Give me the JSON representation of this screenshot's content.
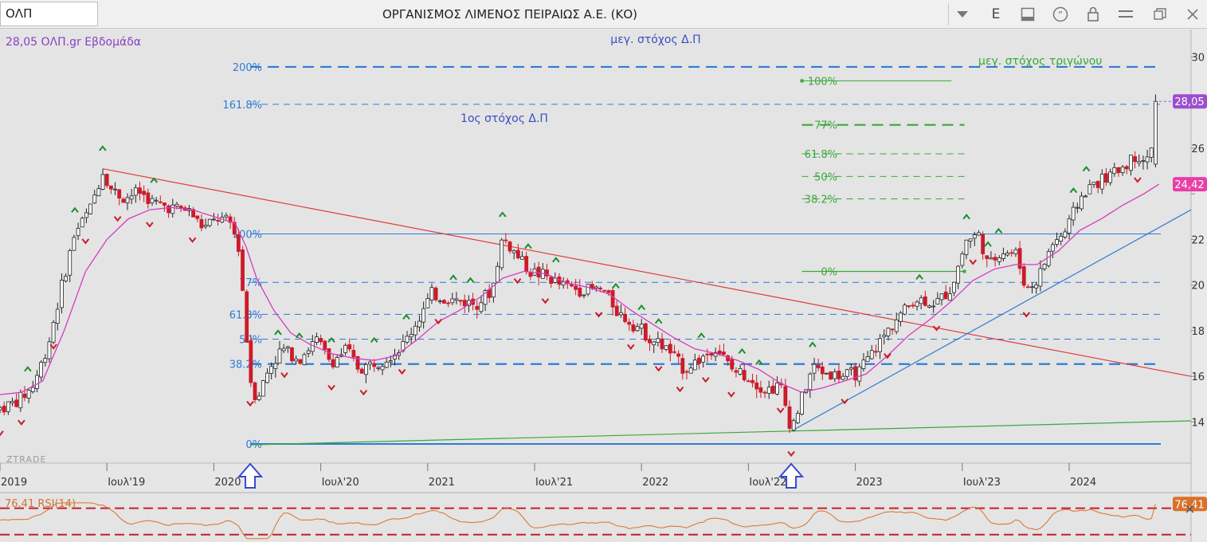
{
  "toolbar": {
    "symbol": "ΟΛΠ",
    "title": "ΟΡΓΑΝΙΣΜΟΣ ΛΙΜΕΝΟΣ ΠΕΙΡΑΙΩΣ Α.Ε. (ΚΟ)",
    "e_label": "E"
  },
  "colors": {
    "candle_up": "#ffffff",
    "candle_down": "#cc1b2a",
    "ma": "#d63bbf",
    "downtrend": "#e23b3b",
    "uptrend": "#2f7bd6",
    "base_line": "#39a83b",
    "blue_levels": "#2f7bd6",
    "green_levels": "#39a83b",
    "rsi": "#d9712a",
    "price_badge": "#9b4fd0",
    "ma_badge": "#e83ea8"
  },
  "chart_data": [
    {
      "type": "candlestick",
      "title": "28,05 ΟΛΠ.gr Εβδομάδα",
      "watermark": "ZTRADE",
      "x_ticks": [
        "2019",
        "Ιουλ'19",
        "2020",
        "Ιουλ'20",
        "2021",
        "Ιουλ'21",
        "2022",
        "Ιουλ'22",
        "2023",
        "Ιουλ'23",
        "2024"
      ],
      "y_ticks": [
        14,
        16,
        18,
        20,
        22,
        24,
        26,
        28,
        30
      ],
      "y_tick_labels": [
        "14",
        "16",
        "18",
        "20",
        "22",
        "",
        "26",
        "",
        "30"
      ],
      "ylim": [
        12.2,
        31.2
      ],
      "xlim": [
        2019.0,
        2024.57
      ],
      "last_price": "28,05",
      "ma_value": "24,42",
      "price_series": [
        [
          2019.0,
          14.6
        ],
        [
          2019.08,
          14.9
        ],
        [
          2019.15,
          15.5
        ],
        [
          2019.22,
          17.2
        ],
        [
          2019.28,
          19.6
        ],
        [
          2019.35,
          22.3
        ],
        [
          2019.42,
          23.3
        ],
        [
          2019.48,
          25.0
        ],
        [
          2019.52,
          24.2
        ],
        [
          2019.58,
          23.8
        ],
        [
          2019.65,
          24.1
        ],
        [
          2019.72,
          23.6
        ],
        [
          2019.8,
          23.4
        ],
        [
          2019.88,
          23.3
        ],
        [
          2019.95,
          22.5
        ],
        [
          2020.02,
          22.9
        ],
        [
          2020.08,
          22.7
        ],
        [
          2020.12,
          21.5
        ],
        [
          2020.15,
          18.0
        ],
        [
          2020.17,
          15.9
        ],
        [
          2020.2,
          15.0
        ],
        [
          2020.26,
          16.4
        ],
        [
          2020.32,
          17.2
        ],
        [
          2020.4,
          16.8
        ],
        [
          2020.48,
          17.6
        ],
        [
          2020.55,
          16.6
        ],
        [
          2020.62,
          17.2
        ],
        [
          2020.68,
          16.3
        ],
        [
          2020.75,
          16.6
        ],
        [
          2020.82,
          16.9
        ],
        [
          2020.88,
          17.3
        ],
        [
          2020.95,
          18.4
        ],
        [
          2021.02,
          19.6
        ],
        [
          2021.08,
          19.4
        ],
        [
          2021.15,
          19.3
        ],
        [
          2021.22,
          19.2
        ],
        [
          2021.3,
          19.7
        ],
        [
          2021.35,
          22.1
        ],
        [
          2021.4,
          21.5
        ],
        [
          2021.48,
          20.6
        ],
        [
          2021.55,
          20.4
        ],
        [
          2021.62,
          20.0
        ],
        [
          2021.72,
          19.8
        ],
        [
          2021.82,
          19.8
        ],
        [
          2021.9,
          18.7
        ],
        [
          2021.98,
          18.2
        ],
        [
          2022.05,
          17.6
        ],
        [
          2022.12,
          17.2
        ],
        [
          2022.2,
          16.3
        ],
        [
          2022.28,
          16.8
        ],
        [
          2022.35,
          17.3
        ],
        [
          2022.42,
          16.3
        ],
        [
          2022.5,
          16.0
        ],
        [
          2022.58,
          15.4
        ],
        [
          2022.65,
          15.6
        ],
        [
          2022.7,
          13.7
        ],
        [
          2022.73,
          14.5
        ],
        [
          2022.8,
          16.4
        ],
        [
          2022.88,
          16.1
        ],
        [
          2022.95,
          16.0
        ],
        [
          2023.02,
          16.2
        ],
        [
          2023.1,
          17.3
        ],
        [
          2023.18,
          18.4
        ],
        [
          2023.28,
          19.4
        ],
        [
          2023.38,
          19.2
        ],
        [
          2023.45,
          19.9
        ],
        [
          2023.52,
          22.0
        ],
        [
          2023.58,
          22.2
        ],
        [
          2023.62,
          20.8
        ],
        [
          2023.68,
          21.5
        ],
        [
          2023.75,
          21.4
        ],
        [
          2023.8,
          19.8
        ],
        [
          2023.85,
          20.2
        ],
        [
          2023.92,
          21.8
        ],
        [
          2023.98,
          22.3
        ],
        [
          2024.05,
          23.8
        ],
        [
          2024.12,
          24.5
        ],
        [
          2024.18,
          24.7
        ],
        [
          2024.25,
          25.2
        ],
        [
          2024.32,
          25.7
        ],
        [
          2024.37,
          25.4
        ],
        [
          2024.42,
          28.05
        ]
      ],
      "ma_series": [
        [
          2019.0,
          15.2
        ],
        [
          2019.1,
          15.3
        ],
        [
          2019.2,
          15.8
        ],
        [
          2019.3,
          18.0
        ],
        [
          2019.4,
          20.6
        ],
        [
          2019.5,
          22.0
        ],
        [
          2019.6,
          22.9
        ],
        [
          2019.7,
          23.3
        ],
        [
          2019.8,
          23.4
        ],
        [
          2019.9,
          23.3
        ],
        [
          2020.0,
          23.0
        ],
        [
          2020.1,
          22.7
        ],
        [
          2020.15,
          21.7
        ],
        [
          2020.2,
          20.3
        ],
        [
          2020.28,
          18.9
        ],
        [
          2020.36,
          17.9
        ],
        [
          2020.45,
          17.4
        ],
        [
          2020.55,
          17.0
        ],
        [
          2020.65,
          16.8
        ],
        [
          2020.75,
          16.7
        ],
        [
          2020.85,
          16.9
        ],
        [
          2020.95,
          17.6
        ],
        [
          2021.05,
          18.4
        ],
        [
          2021.15,
          18.9
        ],
        [
          2021.25,
          19.5
        ],
        [
          2021.35,
          20.3
        ],
        [
          2021.45,
          20.6
        ],
        [
          2021.55,
          20.5
        ],
        [
          2021.65,
          20.1
        ],
        [
          2021.75,
          19.9
        ],
        [
          2021.85,
          19.6
        ],
        [
          2021.95,
          18.9
        ],
        [
          2022.05,
          18.3
        ],
        [
          2022.15,
          17.7
        ],
        [
          2022.25,
          17.2
        ],
        [
          2022.35,
          17.0
        ],
        [
          2022.45,
          16.7
        ],
        [
          2022.55,
          16.3
        ],
        [
          2022.65,
          15.7
        ],
        [
          2022.75,
          15.3
        ],
        [
          2022.85,
          15.5
        ],
        [
          2022.95,
          15.8
        ],
        [
          2023.05,
          16.1
        ],
        [
          2023.15,
          16.9
        ],
        [
          2023.25,
          17.8
        ],
        [
          2023.35,
          18.5
        ],
        [
          2023.45,
          19.3
        ],
        [
          2023.55,
          20.2
        ],
        [
          2023.65,
          20.7
        ],
        [
          2023.75,
          20.9
        ],
        [
          2023.85,
          20.9
        ],
        [
          2023.95,
          21.5
        ],
        [
          2024.05,
          22.4
        ],
        [
          2024.15,
          22.9
        ],
        [
          2024.25,
          23.5
        ],
        [
          2024.35,
          24.0
        ],
        [
          2024.42,
          24.42
        ]
      ],
      "blue_levels": [
        {
          "label": "200%",
          "value": 29.56,
          "style": "long-dash"
        },
        {
          "label": "161.8%",
          "value": 27.92,
          "style": "dash"
        },
        {
          "label": "100%",
          "value": 22.24,
          "style": "solid"
        },
        {
          "label": "77%",
          "value": 20.12,
          "style": "dash"
        },
        {
          "label": "61.8%",
          "value": 18.72,
          "style": "dash"
        },
        {
          "label": "50%",
          "value": 17.63,
          "style": "dash"
        },
        {
          "label": "38.2%",
          "value": 16.54,
          "style": "long-dash"
        },
        {
          "label": "0%",
          "value": 13.04,
          "style": "solid"
        }
      ],
      "green_levels": [
        {
          "label": "100%",
          "value": 28.95
        },
        {
          "label": "77%",
          "value": 27.02
        },
        {
          "label": "61.8%",
          "value": 25.75
        },
        {
          "label": "50%",
          "value": 24.76
        },
        {
          "label": "38.2%",
          "value": 23.78
        },
        {
          "label": "0%",
          "value": 20.6
        }
      ],
      "annotations": [
        "μεγ. στόχος Δ.Π",
        "1ος στόχος Δ.Π",
        "μεγ. στόχος τριγώνου"
      ],
      "trendlines": [
        {
          "name": "downtrend",
          "from": [
            2019.48,
            25.1
          ],
          "to": [
            2024.57,
            16.0
          ]
        },
        {
          "name": "uptrend",
          "from": [
            2022.7,
            13.6
          ],
          "to": [
            2024.57,
            23.3
          ]
        },
        {
          "name": "base",
          "from": [
            2020.17,
            13.0
          ],
          "to": [
            2024.57,
            14.05
          ]
        }
      ],
      "arrows_at": [
        "2020.17",
        "2022.70"
      ]
    },
    {
      "type": "line",
      "title": "76,41 RSI(14)",
      "last_value": "76,41",
      "levels": [
        70,
        30
      ],
      "ylim": [
        20,
        90
      ]
    }
  ]
}
